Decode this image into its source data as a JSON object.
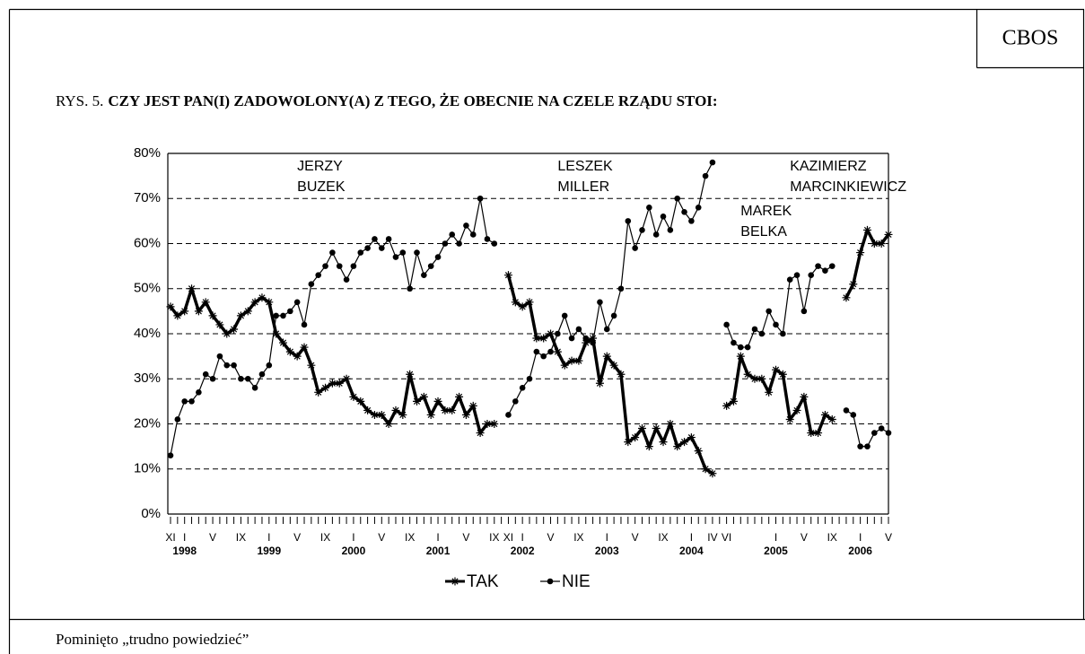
{
  "header": {
    "badge": "CBOS",
    "figure_label": "RYS. 5.",
    "title": "CZY JEST PAN(I) ZADOWOLONY(A) Z TEGO, ŻE OBECNIE NA CZELE RZĄDU STOI:"
  },
  "chart_data": {
    "type": "line",
    "categories": [
      "XI",
      null,
      "I",
      null,
      null,
      null,
      "V",
      null,
      null,
      null,
      "IX",
      null,
      null,
      null,
      "I",
      null,
      null,
      null,
      "V",
      null,
      null,
      null,
      "IX",
      null,
      null,
      null,
      "I",
      null,
      null,
      null,
      "V",
      null,
      null,
      null,
      "IX",
      null,
      null,
      null,
      "I",
      null,
      null,
      null,
      "V",
      null,
      null,
      null,
      "IX",
      null,
      "XI",
      null,
      "I",
      null,
      null,
      null,
      "V",
      null,
      null,
      null,
      "IX",
      null,
      null,
      null,
      "I",
      null,
      null,
      null,
      "V",
      null,
      null,
      null,
      "IX",
      null,
      null,
      null,
      "I",
      null,
      null,
      "IV",
      null,
      "VI",
      null,
      null,
      null,
      null,
      null,
      null,
      "I",
      null,
      null,
      null,
      "V",
      null,
      null,
      null,
      "IX",
      null,
      null,
      null,
      "I",
      null,
      null,
      null,
      "V"
    ],
    "years": [
      null,
      null,
      "1998",
      null,
      null,
      null,
      null,
      null,
      null,
      null,
      null,
      null,
      null,
      null,
      "1999",
      null,
      null,
      null,
      null,
      null,
      null,
      null,
      null,
      null,
      null,
      null,
      "2000",
      null,
      null,
      null,
      null,
      null,
      null,
      null,
      null,
      null,
      null,
      null,
      "2001",
      null,
      null,
      null,
      null,
      null,
      null,
      null,
      null,
      null,
      null,
      null,
      "2002",
      null,
      null,
      null,
      null,
      null,
      null,
      null,
      null,
      null,
      null,
      null,
      "2003",
      null,
      null,
      null,
      null,
      null,
      null,
      null,
      null,
      null,
      null,
      null,
      "2004",
      null,
      null,
      null,
      null,
      null,
      null,
      null,
      null,
      null,
      null,
      null,
      "2005",
      null,
      null,
      null,
      null,
      null,
      null,
      null,
      null,
      null,
      null,
      null,
      "2006",
      null,
      null,
      null,
      null
    ],
    "series": [
      {
        "name": "TAK",
        "color": "#000000",
        "marker": "star",
        "values": [
          46,
          44,
          45,
          50,
          45,
          47,
          44,
          42,
          40,
          41,
          44,
          45,
          47,
          48,
          47,
          40,
          38,
          36,
          35,
          37,
          33,
          27,
          28,
          29,
          29,
          30,
          26,
          25,
          23,
          22,
          22,
          20,
          23,
          22,
          31,
          25,
          26,
          22,
          25,
          23,
          23,
          26,
          22,
          24,
          18,
          20,
          20,
          null,
          53,
          47,
          46,
          47,
          39,
          39,
          40,
          36,
          33,
          34,
          34,
          38,
          39,
          29,
          35,
          33,
          31,
          16,
          17,
          19,
          15,
          19,
          16,
          20,
          15,
          16,
          17,
          14,
          10,
          9,
          null,
          24,
          25,
          35,
          31,
          30,
          30,
          27,
          32,
          31,
          21,
          23,
          26,
          18,
          18,
          22,
          21,
          null,
          48,
          51,
          58,
          63,
          60,
          60,
          62
        ]
      },
      {
        "name": "NIE",
        "color": "#000000",
        "marker": "circle",
        "values": [
          13,
          21,
          25,
          25,
          27,
          31,
          30,
          35,
          33,
          33,
          30,
          30,
          28,
          31,
          33,
          44,
          44,
          45,
          47,
          42,
          51,
          53,
          55,
          58,
          55,
          52,
          55,
          58,
          59,
          61,
          59,
          61,
          57,
          58,
          50,
          58,
          53,
          55,
          57,
          60,
          62,
          60,
          64,
          62,
          70,
          61,
          60,
          null,
          22,
          25,
          28,
          30,
          36,
          35,
          36,
          40,
          44,
          39,
          41,
          39,
          38,
          47,
          41,
          44,
          50,
          65,
          59,
          63,
          68,
          62,
          66,
          63,
          70,
          67,
          65,
          68,
          75,
          78,
          null,
          42,
          38,
          37,
          37,
          41,
          40,
          45,
          42,
          40,
          52,
          53,
          45,
          53,
          55,
          54,
          55,
          null,
          23,
          22,
          15,
          15,
          18,
          19,
          18
        ]
      }
    ],
    "ylim": [
      0,
      80
    ],
    "yticks": [
      {
        "value": 0,
        "label": "0%"
      },
      {
        "value": 10,
        "label": "10%"
      },
      {
        "value": 20,
        "label": "20%"
      },
      {
        "value": 30,
        "label": "30%"
      },
      {
        "value": 40,
        "label": "40%"
      },
      {
        "value": 50,
        "label": "50%"
      },
      {
        "value": 60,
        "label": "60%"
      },
      {
        "value": 70,
        "label": "70%"
      },
      {
        "value": 80,
        "label": "80%"
      }
    ],
    "grid": true,
    "legend": "bottom",
    "annotations": [
      {
        "lines": [
          "JERZY",
          "BUZEK"
        ],
        "at": 18
      },
      {
        "lines": [
          "LESZEK",
          "MILLER"
        ],
        "at": 55
      },
      {
        "lines": [
          "MAREK",
          "BELKA"
        ],
        "at": 81
      },
      {
        "lines": [
          "KAZIMIERZ",
          "MARCINKIEWICZ"
        ],
        "at": 88
      }
    ]
  },
  "footnote": "Pominięto „trudno powiedzieć”"
}
